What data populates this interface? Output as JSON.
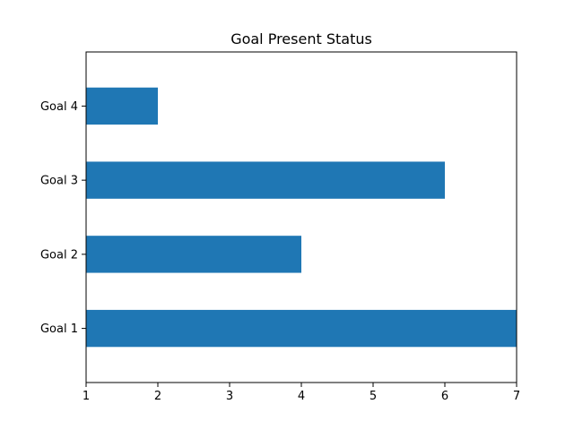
{
  "chart_data": {
    "type": "bar",
    "orientation": "horizontal",
    "title": "Goal Present Status",
    "xlabel": "",
    "ylabel": "",
    "categories": [
      "Goal 1",
      "Goal 2",
      "Goal 3",
      "Goal 4"
    ],
    "values": [
      7,
      4,
      6,
      2
    ],
    "xlim": [
      1,
      7
    ],
    "xticks": [
      1,
      2,
      3,
      4,
      5,
      6,
      7
    ],
    "grid": false,
    "legend": "none",
    "bar_color": "#1f77b4"
  }
}
